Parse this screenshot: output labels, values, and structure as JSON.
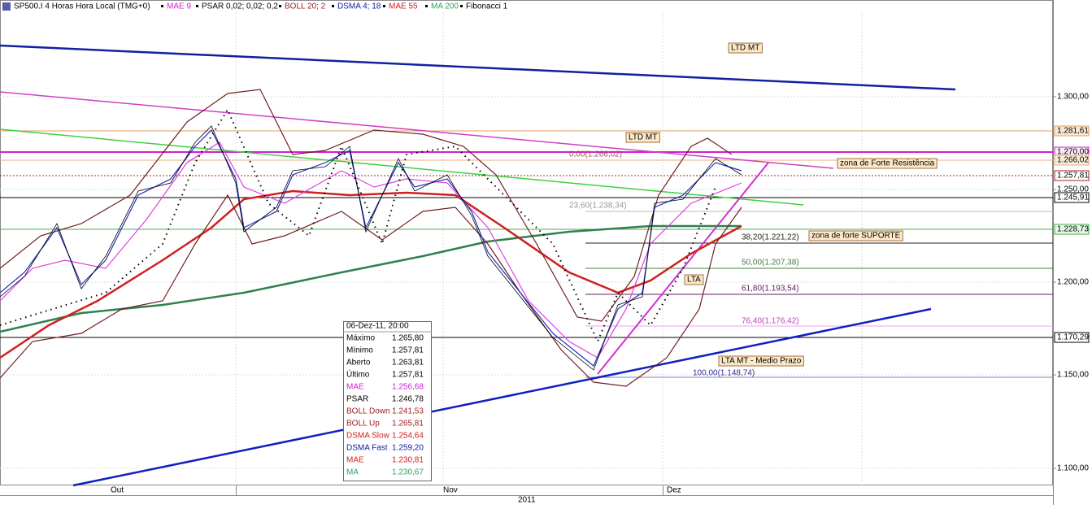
{
  "header": {
    "symbol": "SP500.I 4 Horas Hora Local (TMG+0)",
    "indicators": [
      "MAE 9",
      "PSAR 0,02; 0,02; 0,2",
      "BOLL 20; 2",
      "DSMA 4; 18",
      "MAE 55",
      "MA 200",
      "Fibonacci 1"
    ]
  },
  "y_axis": {
    "ticks": [
      "1.300,00",
      "1.250,00",
      "1.200,00",
      "1.150,00",
      "1.100,00"
    ],
    "price_labels": [
      "1.281,61",
      "1.270,00",
      "1.266,02",
      "1.257,81",
      "1.245,91",
      "1.228,73",
      "1.170,29"
    ]
  },
  "annotations": [
    "LTD MT",
    "LTD MT",
    "zona de Forte Resistência",
    "zona de forte SUPORTE",
    "LTA",
    "LTA MT - Medio Prazo"
  ],
  "fibonacci": [
    "0,00(1.266,02)",
    "23,60(1.238,34)",
    "38,20(1.221,22)",
    "50,00(1.207,38)",
    "61,80(1.193,54)",
    "76,40(1.176,42)",
    "100,00(1.148,74)"
  ],
  "x_axis": {
    "months": [
      "Out",
      "Nov",
      "Dez"
    ],
    "year": "2011"
  },
  "tooltip": {
    "date": "06-Dez-11, 20:00",
    "rows": [
      [
        "Máximo",
        "1.265,80"
      ],
      [
        "Mínimo",
        "1.257,81"
      ],
      [
        "Aberto",
        "1.263,81"
      ],
      [
        "Último",
        "1.257,81"
      ],
      [
        "MAE",
        "1.256,68"
      ],
      [
        "PSAR",
        "1.246,78"
      ],
      [
        "BOLL Down",
        "1.241,53"
      ],
      [
        "BOLL Up",
        "1.265,81"
      ],
      [
        "DSMA Slow",
        "1.254,64"
      ],
      [
        "DSMA Fast",
        "1.259,20"
      ],
      [
        "MAE",
        "1.230,81"
      ],
      [
        "MA",
        "1.230,67"
      ]
    ]
  }
}
